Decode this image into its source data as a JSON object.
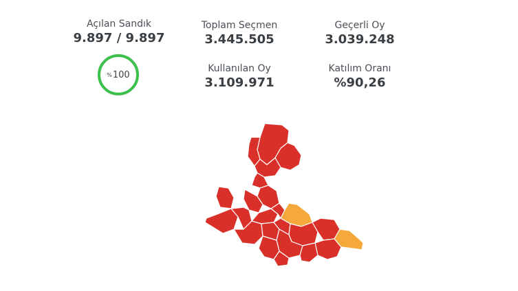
{
  "stats": {
    "opened_boxes": {
      "label": "Açılan Sandık",
      "value": "9.897 / 9.897"
    },
    "total_voters": {
      "label": "Toplam Seçmen",
      "value": "3.445.505"
    },
    "valid_votes": {
      "label": "Geçerli Oy",
      "value": "3.039.248"
    },
    "votes_cast": {
      "label": "Kullanılan Oy",
      "value": "3.109.971"
    },
    "turnout": {
      "label": "Katılım Oranı",
      "value": "%90,26"
    }
  },
  "progress": {
    "percent_symbol": "%",
    "value": "100",
    "fraction": 1.0,
    "ring_color": "#3cc04b"
  },
  "map": {
    "colors": {
      "red": "#d9302a",
      "orange": "#f5a93b"
    }
  }
}
